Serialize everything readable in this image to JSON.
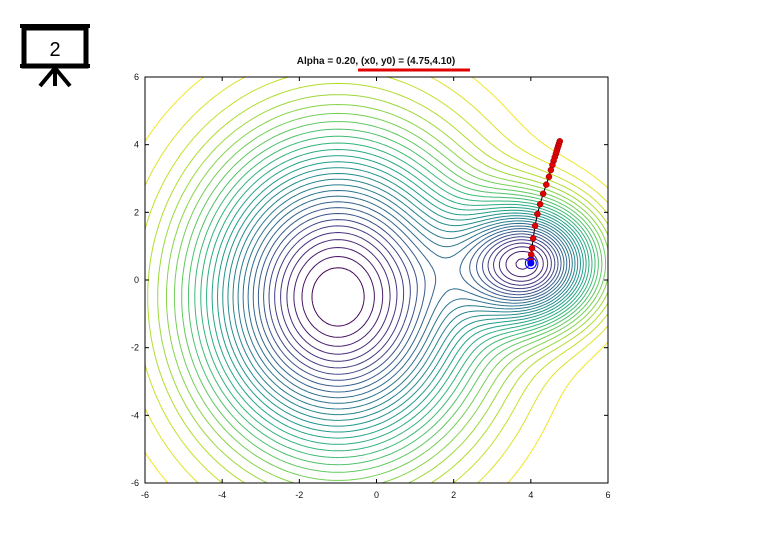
{
  "slide_badge": {
    "number": "2",
    "icon": "presentation-board-icon"
  },
  "chart_data": {
    "type": "contour",
    "title": "Alpha = 0.20, (x0, y0) = (4.75,4.10)",
    "xlim": [
      -6,
      6
    ],
    "ylim": [
      -6,
      6
    ],
    "x_ticks": [
      -6,
      -4,
      -2,
      0,
      2,
      4,
      6
    ],
    "y_ticks": [
      -6,
      -4,
      -2,
      0,
      2,
      4,
      6
    ],
    "x_tick_labels": [
      "-6",
      "-4",
      "-2",
      "0",
      "2",
      "4",
      "6"
    ],
    "y_tick_labels": [
      "6",
      "4",
      "2",
      "0",
      "-2",
      "-4",
      "-6"
    ],
    "grid": false,
    "colormap": "viridis",
    "basins": [
      {
        "center": [
          -1.0,
          -0.5
        ],
        "sx": 2.5,
        "sy": 3.2,
        "depth": 1.0
      },
      {
        "center": [
          4.0,
          0.5
        ],
        "sx": 1.2,
        "sy": 1.2,
        "depth": 0.8
      }
    ],
    "contour_levels": 30,
    "path": {
      "start": [
        4.75,
        4.1
      ],
      "end": [
        4.0,
        0.5
      ],
      "points": [
        [
          4.75,
          4.1
        ],
        [
          4.73,
          4.03
        ],
        [
          4.71,
          3.96
        ],
        [
          4.69,
          3.89
        ],
        [
          4.67,
          3.81
        ],
        [
          4.65,
          3.73
        ],
        [
          4.62,
          3.63
        ],
        [
          4.59,
          3.52
        ],
        [
          4.56,
          3.4
        ],
        [
          4.52,
          3.25
        ],
        [
          4.47,
          3.05
        ],
        [
          4.4,
          2.82
        ],
        [
          4.32,
          2.55
        ],
        [
          4.24,
          2.24
        ],
        [
          4.17,
          1.95
        ],
        [
          4.11,
          1.6
        ],
        [
          4.06,
          1.23
        ],
        [
          4.03,
          0.94
        ],
        [
          4.01,
          0.75
        ],
        [
          4.005,
          0.62
        ],
        [
          4.0,
          0.5
        ]
      ],
      "path_color": "#e00000",
      "end_color": "#0000ff"
    },
    "highlight_underline_color": "#e00000"
  }
}
